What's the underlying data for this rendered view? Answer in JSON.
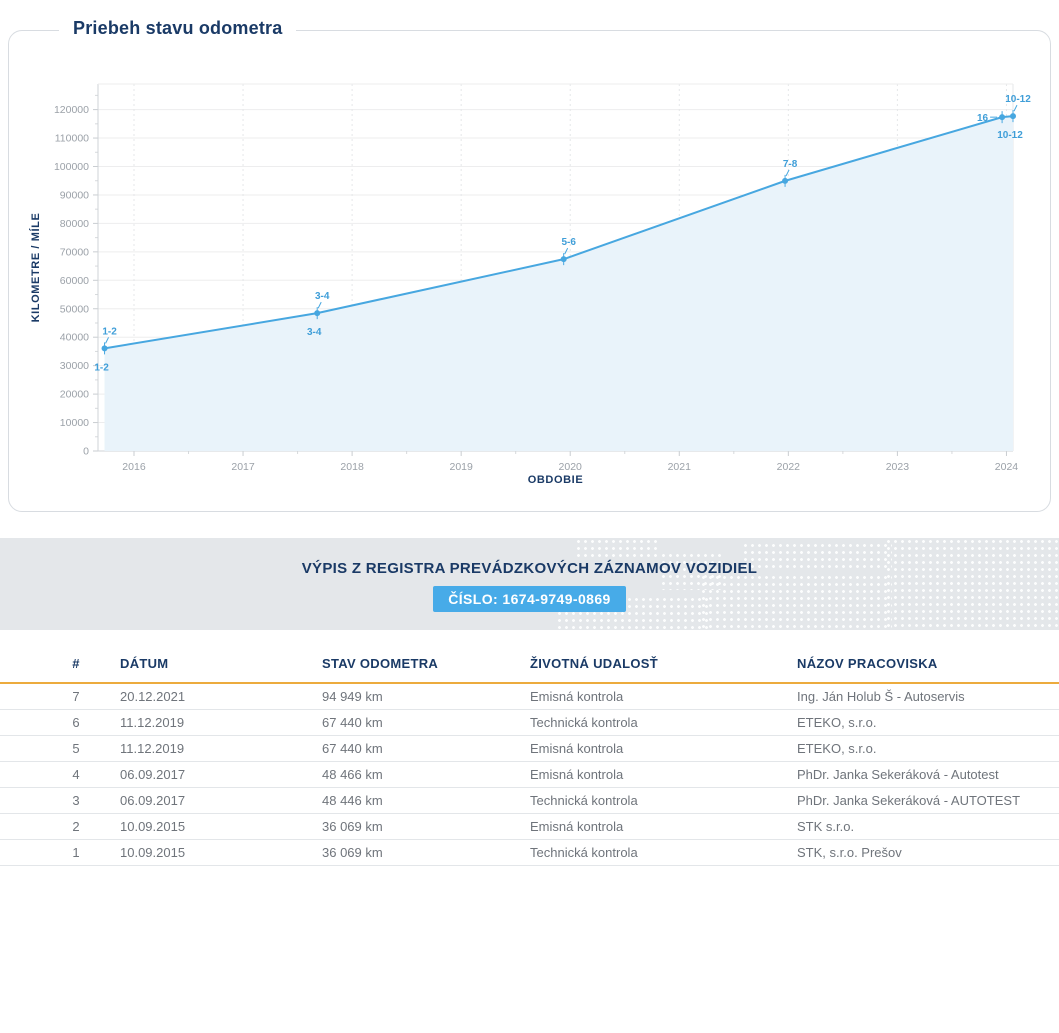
{
  "chart_data": {
    "type": "line",
    "title": "Priebeh stavu odometra",
    "xlabel": "OBDOBIE",
    "ylabel": "KILOMETRE / MÍLE",
    "x_ticks": [
      "2016",
      "2017",
      "2018",
      "2019",
      "2020",
      "2021",
      "2022",
      "2023",
      "2024"
    ],
    "x_tick_values": [
      2016,
      2017,
      2018,
      2019,
      2020,
      2021,
      2022,
      2023,
      2024
    ],
    "y_ticks": [
      0,
      10000,
      20000,
      30000,
      40000,
      50000,
      60000,
      70000,
      80000,
      90000,
      100000,
      110000,
      120000
    ],
    "x_range": [
      2015.67,
      2024.06
    ],
    "y_range": [
      0,
      129000
    ],
    "grid": true,
    "legend": "none",
    "line_color": "#47a7e0",
    "area_color": "#e9f3fa",
    "label_color": "#3f9ed8",
    "points": [
      {
        "x": 2015.73,
        "y": 36069,
        "labels": [
          {
            "text": "1-2",
            "pos": "above"
          },
          {
            "text": "1-2",
            "pos": "below"
          }
        ]
      },
      {
        "x": 2017.68,
        "y": 48456,
        "labels": [
          {
            "text": "3-4",
            "pos": "above"
          },
          {
            "text": "3-4",
            "pos": "below"
          }
        ]
      },
      {
        "x": 2019.94,
        "y": 67440,
        "labels": [
          {
            "text": "5-6",
            "pos": "above"
          }
        ]
      },
      {
        "x": 2021.97,
        "y": 94949,
        "labels": [
          {
            "text": "7-8",
            "pos": "above"
          }
        ]
      },
      {
        "x": 2023.96,
        "y": 117350,
        "labels": [
          {
            "text": "16",
            "pos": "left"
          }
        ]
      },
      {
        "x": 2024.06,
        "y": 117700,
        "labels": [
          {
            "text": "10-12",
            "pos": "above"
          },
          {
            "text": "10-12",
            "pos": "below"
          }
        ]
      }
    ]
  },
  "register_banner": {
    "title": "VÝPIS Z REGISTRA PREVÁDZKOVÝCH ZÁZNAMOV VOZIDIEL",
    "number_badge": "ČÍSLO: 1674-9749-0869"
  },
  "records_table": {
    "columns": [
      "#",
      "DÁTUM",
      "STAV ODOMETRA",
      "ŽIVOTNÁ UDALOSŤ",
      "NÁZOV PRACOVISKA"
    ],
    "rows": [
      [
        "7",
        "20.12.2021",
        "94 949 km",
        "Emisná kontrola",
        "Ing. Ján Holub Š - Autoservis"
      ],
      [
        "6",
        "11.12.2019",
        "67 440 km",
        "Technická kontrola",
        "ETEKO, s.r.o."
      ],
      [
        "5",
        "11.12.2019",
        "67 440 km",
        "Emisná kontrola",
        "ETEKO, s.r.o."
      ],
      [
        "4",
        "06.09.2017",
        "48 466 km",
        "Emisná kontrola",
        "PhDr. Janka Sekeráková - Autotest"
      ],
      [
        "3",
        "06.09.2017",
        "48 446 km",
        "Technická kontrola",
        "PhDr. Janka Sekeráková - AUTOTEST"
      ],
      [
        "2",
        "10.09.2015",
        "36 069 km",
        "Emisná kontrola",
        "STK s.r.o."
      ],
      [
        "1",
        "10.09.2015",
        "36 069 km",
        "Technická kontrola",
        "STK, s.r.o. Prešov"
      ]
    ]
  },
  "colors": {
    "navy": "#1a3a66",
    "badge_blue": "#47abe8",
    "line_blue": "#47a7e0",
    "area_fill": "#e9f3fa",
    "gold_rule": "#ecab3d",
    "banner_bg": "#e4e7ea",
    "tick_gray": "#9ba1a8"
  }
}
